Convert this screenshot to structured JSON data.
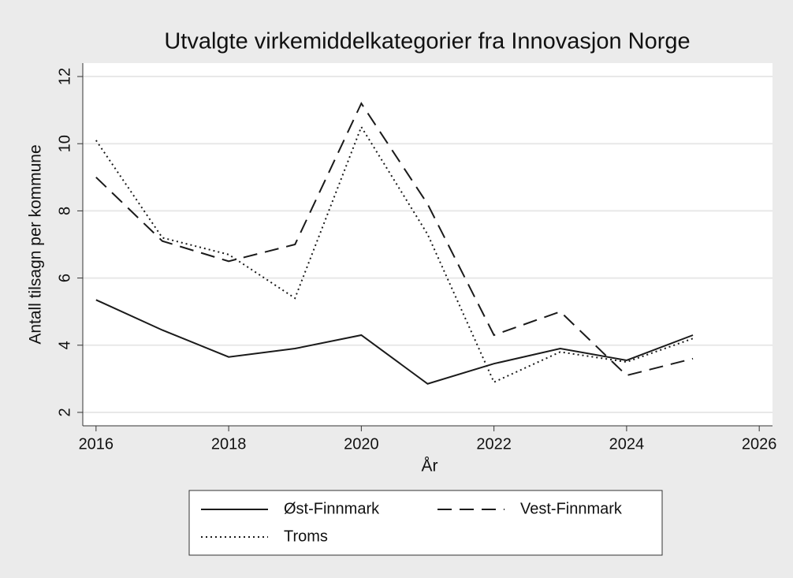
{
  "chart_data": {
    "type": "line",
    "title": "Utvalgte virkemiddelkategorier fra Innovasjon Norge",
    "x_label": "År",
    "y_label": "Antall tilsagn per kommune",
    "x": [
      2016,
      2017,
      2018,
      2019,
      2020,
      2021,
      2022,
      2023,
      2024,
      2025
    ],
    "series": [
      {
        "name": "Øst-Finnmark",
        "color": "#1a1a1a",
        "dash": "solid",
        "values": [
          5.35,
          4.45,
          3.65,
          3.9,
          4.3,
          2.85,
          3.45,
          3.9,
          3.55,
          4.3
        ]
      },
      {
        "name": "Vest-Finnmark",
        "color": "#1a1a1a",
        "dash": "dashed",
        "values": [
          9.0,
          7.1,
          6.5,
          7.0,
          11.2,
          8.2,
          4.3,
          5.0,
          3.1,
          3.6
        ]
      },
      {
        "name": "Troms",
        "color": "#1a1a1a",
        "dash": "dotted",
        "values": [
          10.1,
          7.2,
          6.7,
          5.4,
          10.5,
          7.3,
          2.9,
          3.8,
          3.5,
          4.2
        ]
      }
    ],
    "xlim": [
      2015.8,
      2026.2
    ],
    "xticks": [
      2016,
      2018,
      2020,
      2022,
      2024,
      2026
    ],
    "ylim": [
      1.6,
      12.4
    ],
    "yticks": [
      2,
      4,
      6,
      8,
      10,
      12
    ],
    "grid": true,
    "legend": "bottom"
  }
}
